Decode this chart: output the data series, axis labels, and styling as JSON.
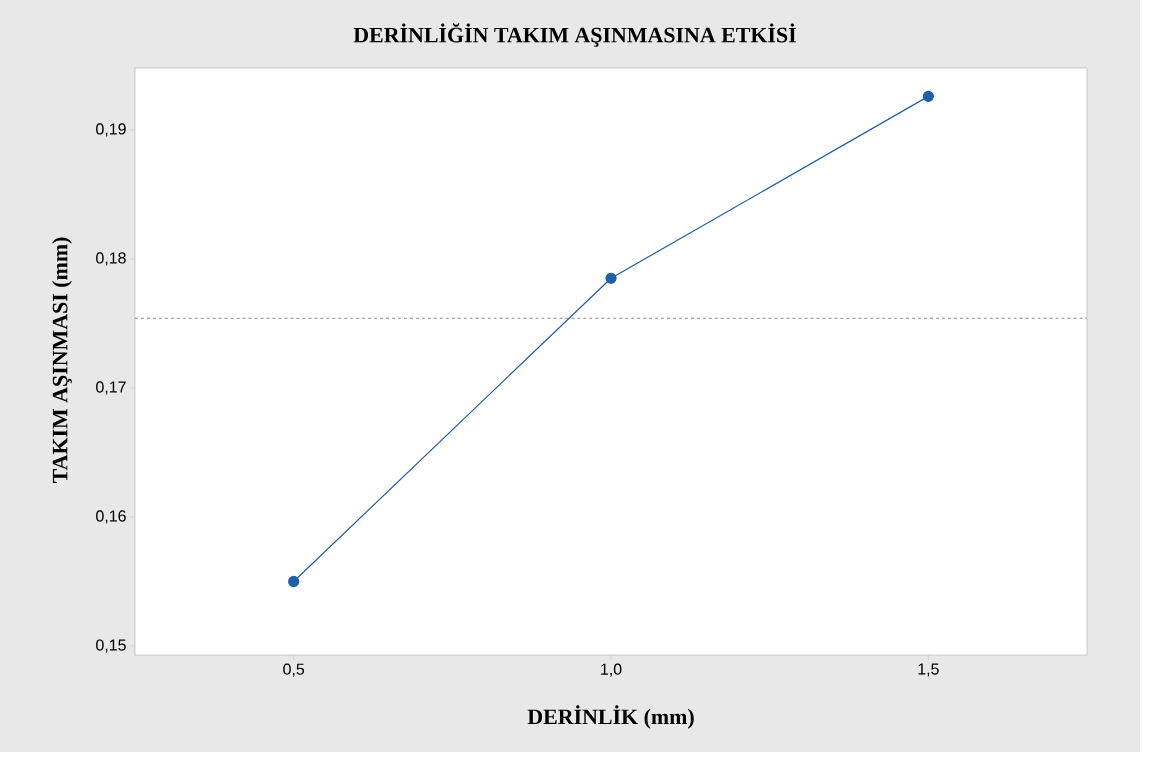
{
  "chart_data": {
    "type": "line",
    "title": "DERİNLİĞİN TAKIM AŞINMASINA ETKİSİ",
    "xlabel": "DERİNLİK (mm)",
    "ylabel": "TAKIM AŞINMASI (mm)",
    "x": [
      0.5,
      1.0,
      1.5
    ],
    "series": [
      {
        "color": "#1f5fa8",
        "values": [
          0.155,
          0.1785,
          0.1926
        ]
      }
    ],
    "marker": "circle",
    "line_style": "solid",
    "xlim": [
      0.25,
      1.75
    ],
    "ylim": [
      0.1493,
      0.1948
    ],
    "xticks": [
      {
        "value": 0.5,
        "label": "0,5"
      },
      {
        "value": 1.0,
        "label": "1,0"
      },
      {
        "value": 1.5,
        "label": "1,5"
      }
    ],
    "yticks": [
      {
        "value": 0.15,
        "label": "0,15"
      },
      {
        "value": 0.16,
        "label": "0,16"
      },
      {
        "value": 0.17,
        "label": "0,17"
      },
      {
        "value": 0.18,
        "label": "0,18"
      },
      {
        "value": 0.19,
        "label": "0,19"
      }
    ],
    "ref_lines": [
      {
        "axis": "y",
        "value": 0.1754,
        "color": "#8c8c8c",
        "line_style": "dashed"
      }
    ]
  }
}
